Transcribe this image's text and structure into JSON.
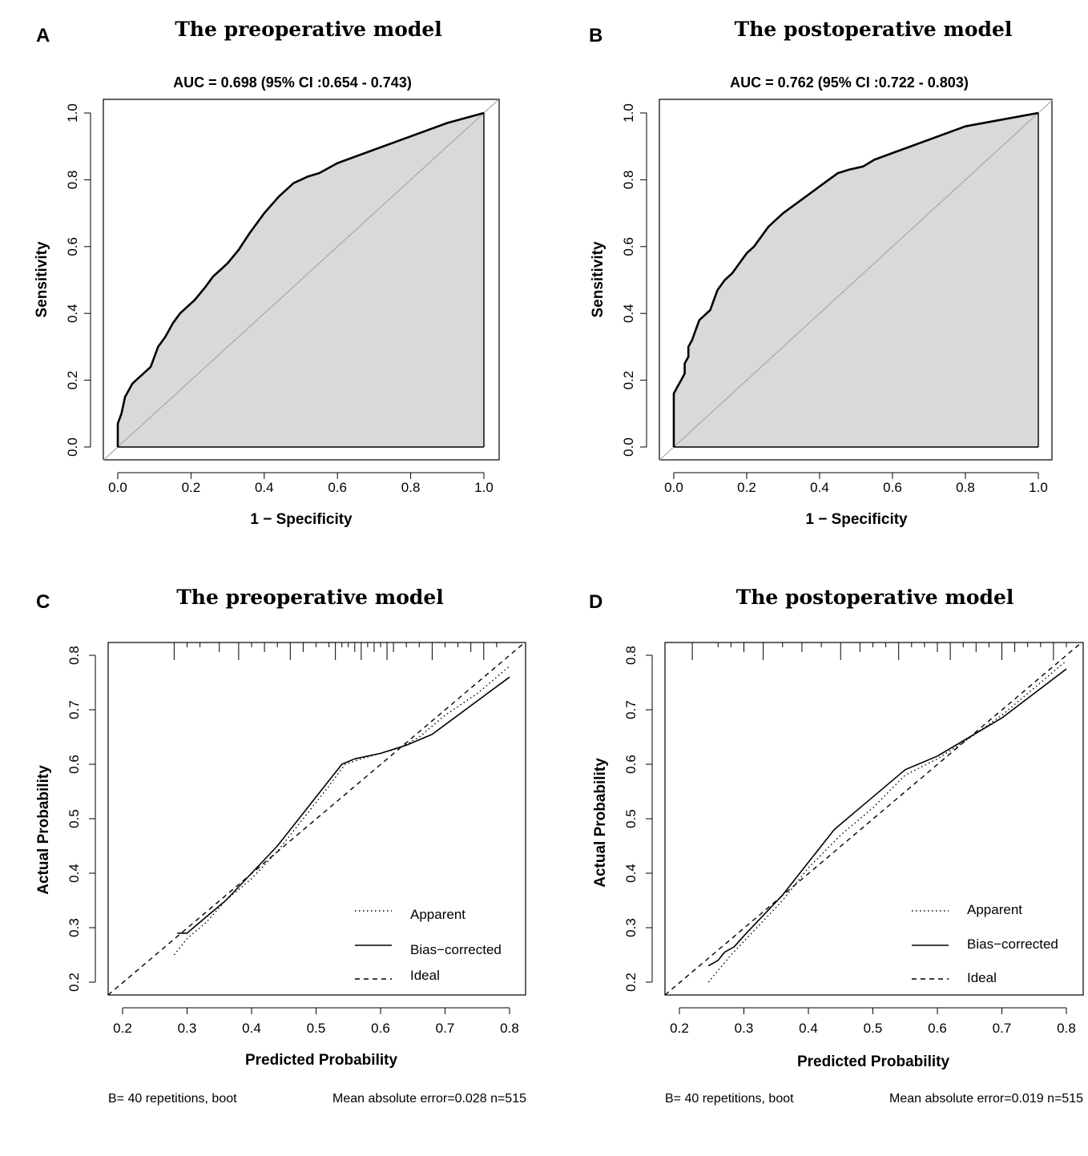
{
  "panels": {
    "A": {
      "letter": "A",
      "title": "The preoperative model",
      "subtitle": "AUC = 0.698 (95% CI :0.654 - 0.743)",
      "xlabel": "1 − Specificity",
      "ylabel": "Sensitivity"
    },
    "B": {
      "letter": "B",
      "title": "The postoperative model",
      "subtitle": "AUC = 0.762 (95% CI :0.722 - 0.803)",
      "xlabel": "1 − Specificity",
      "ylabel": "Sensitivity"
    },
    "C": {
      "letter": "C",
      "title": "The preoperative model",
      "xlabel": "Predicted Probability",
      "ylabel": "Actual Probability",
      "footer_left": "B= 40 repetitions, boot",
      "footer_right": "Mean absolute error=0.028 n=515",
      "legend": [
        "Apparent",
        "Bias−corrected",
        "Ideal"
      ]
    },
    "D": {
      "letter": "D",
      "title": "The postoperative model",
      "xlabel": "Predicted Probability",
      "ylabel": "Actual Probability",
      "footer_left": "B= 40 repetitions, boot",
      "footer_right": "Mean absolute error=0.019 n=515",
      "legend": [
        "Apparent",
        "Bias−corrected",
        "Ideal"
      ]
    }
  },
  "chart_data": [
    {
      "panel": "A",
      "type": "line",
      "title": "The preoperative model",
      "subtitle": "AUC = 0.698 (95% CI :0.654 - 0.743)",
      "xlabel": "1 − Specificity",
      "ylabel": "Sensitivity",
      "xlim": [
        0,
        1
      ],
      "ylim": [
        0,
        1
      ],
      "xticks": [
        "0.0",
        "0.2",
        "0.4",
        "0.6",
        "0.8",
        "1.0"
      ],
      "yticks": [
        "0.0",
        "0.2",
        "0.4",
        "0.6",
        "0.8",
        "1.0"
      ],
      "auc": 0.698,
      "ci": [
        0.654,
        0.743
      ],
      "series": [
        {
          "name": "ROC",
          "filled": true,
          "points": [
            [
              0,
              0
            ],
            [
              0,
              0.07
            ],
            [
              0.01,
              0.1
            ],
            [
              0.02,
              0.15
            ],
            [
              0.03,
              0.17
            ],
            [
              0.04,
              0.19
            ],
            [
              0.05,
              0.2
            ],
            [
              0.07,
              0.22
            ],
            [
              0.09,
              0.24
            ],
            [
              0.1,
              0.27
            ],
            [
              0.11,
              0.3
            ],
            [
              0.13,
              0.33
            ],
            [
              0.15,
              0.37
            ],
            [
              0.17,
              0.4
            ],
            [
              0.2,
              0.43
            ],
            [
              0.21,
              0.44
            ],
            [
              0.24,
              0.48
            ],
            [
              0.26,
              0.51
            ],
            [
              0.28,
              0.53
            ],
            [
              0.3,
              0.55
            ],
            [
              0.33,
              0.59
            ],
            [
              0.36,
              0.64
            ],
            [
              0.4,
              0.7
            ],
            [
              0.44,
              0.75
            ],
            [
              0.48,
              0.79
            ],
            [
              0.5,
              0.8
            ],
            [
              0.52,
              0.81
            ],
            [
              0.55,
              0.82
            ],
            [
              0.6,
              0.85
            ],
            [
              0.7,
              0.89
            ],
            [
              0.8,
              0.93
            ],
            [
              0.9,
              0.97
            ],
            [
              1,
              1
            ]
          ]
        },
        {
          "name": "Reference",
          "points": [
            [
              0,
              0
            ],
            [
              1,
              1
            ]
          ]
        }
      ]
    },
    {
      "panel": "B",
      "type": "line",
      "title": "The postoperative model",
      "subtitle": "AUC = 0.762 (95% CI :0.722 - 0.803)",
      "xlabel": "1 − Specificity",
      "ylabel": "Sensitivity",
      "xlim": [
        0,
        1
      ],
      "ylim": [
        0,
        1
      ],
      "xticks": [
        "0.0",
        "0.2",
        "0.4",
        "0.6",
        "0.8",
        "1.0"
      ],
      "yticks": [
        "0.0",
        "0.2",
        "0.4",
        "0.6",
        "0.8",
        "1.0"
      ],
      "auc": 0.762,
      "ci": [
        0.722,
        0.803
      ],
      "series": [
        {
          "name": "ROC",
          "filled": true,
          "points": [
            [
              0,
              0
            ],
            [
              0,
              0.16
            ],
            [
              0.01,
              0.18
            ],
            [
              0.02,
              0.2
            ],
            [
              0.03,
              0.22
            ],
            [
              0.03,
              0.25
            ],
            [
              0.04,
              0.27
            ],
            [
              0.04,
              0.3
            ],
            [
              0.05,
              0.32
            ],
            [
              0.06,
              0.35
            ],
            [
              0.07,
              0.38
            ],
            [
              0.08,
              0.39
            ],
            [
              0.1,
              0.41
            ],
            [
              0.11,
              0.44
            ],
            [
              0.12,
              0.47
            ],
            [
              0.14,
              0.5
            ],
            [
              0.16,
              0.52
            ],
            [
              0.18,
              0.55
            ],
            [
              0.2,
              0.58
            ],
            [
              0.22,
              0.6
            ],
            [
              0.24,
              0.63
            ],
            [
              0.26,
              0.66
            ],
            [
              0.3,
              0.7
            ],
            [
              0.35,
              0.74
            ],
            [
              0.4,
              0.78
            ],
            [
              0.45,
              0.82
            ],
            [
              0.48,
              0.83
            ],
            [
              0.52,
              0.84
            ],
            [
              0.55,
              0.86
            ],
            [
              0.6,
              0.88
            ],
            [
              0.7,
              0.92
            ],
            [
              0.8,
              0.96
            ],
            [
              0.9,
              0.98
            ],
            [
              1,
              1
            ]
          ]
        },
        {
          "name": "Reference",
          "points": [
            [
              0,
              0
            ],
            [
              1,
              1
            ]
          ]
        }
      ]
    },
    {
      "panel": "C",
      "type": "line",
      "title": "The preoperative model",
      "xlabel": "Predicted Probability",
      "ylabel": "Actual Probability",
      "xlim": [
        0.18,
        0.82
      ],
      "ylim": [
        0.18,
        0.82
      ],
      "xticks": [
        "0.2",
        "0.3",
        "0.4",
        "0.5",
        "0.6",
        "0.7",
        "0.8"
      ],
      "yticks": [
        "0.2",
        "0.3",
        "0.4",
        "0.5",
        "0.6",
        "0.7",
        "0.8"
      ],
      "rug": [
        0.28,
        0.3,
        0.32,
        0.35,
        0.38,
        0.4,
        0.42,
        0.44,
        0.46,
        0.48,
        0.5,
        0.52,
        0.53,
        0.54,
        0.55,
        0.56,
        0.57,
        0.58,
        0.59,
        0.6,
        0.61,
        0.62,
        0.64,
        0.66,
        0.68,
        0.7,
        0.72,
        0.74,
        0.76,
        0.78
      ],
      "series": [
        {
          "name": "Apparent",
          "style": "dotted",
          "points": [
            [
              0.28,
              0.25
            ],
            [
              0.3,
              0.28
            ],
            [
              0.33,
              0.31
            ],
            [
              0.36,
              0.35
            ],
            [
              0.4,
              0.39
            ],
            [
              0.44,
              0.44
            ],
            [
              0.48,
              0.5
            ],
            [
              0.52,
              0.56
            ],
            [
              0.545,
              0.6
            ],
            [
              0.57,
              0.61
            ],
            [
              0.6,
              0.62
            ],
            [
              0.63,
              0.63
            ],
            [
              0.66,
              0.65
            ],
            [
              0.7,
              0.69
            ],
            [
              0.75,
              0.73
            ],
            [
              0.8,
              0.78
            ]
          ]
        },
        {
          "name": "Bias−corrected",
          "style": "solid",
          "points": [
            [
              0.285,
              0.29
            ],
            [
              0.3,
              0.29
            ],
            [
              0.31,
              0.3
            ],
            [
              0.33,
              0.32
            ],
            [
              0.36,
              0.35
            ],
            [
              0.4,
              0.4
            ],
            [
              0.44,
              0.45
            ],
            [
              0.48,
              0.51
            ],
            [
              0.52,
              0.57
            ],
            [
              0.54,
              0.6
            ],
            [
              0.56,
              0.61
            ],
            [
              0.6,
              0.62
            ],
            [
              0.64,
              0.635
            ],
            [
              0.68,
              0.655
            ],
            [
              0.72,
              0.69
            ],
            [
              0.76,
              0.725
            ],
            [
              0.8,
              0.76
            ]
          ]
        },
        {
          "name": "Ideal",
          "style": "dashed",
          "points": [
            [
              0.18,
              0.18
            ],
            [
              0.82,
              0.82
            ]
          ]
        }
      ]
    },
    {
      "panel": "D",
      "type": "line",
      "title": "The postoperative model",
      "xlabel": "Predicted Probability",
      "ylabel": "Actual Probability",
      "xlim": [
        0.18,
        0.82
      ],
      "ylim": [
        0.18,
        0.82
      ],
      "xticks": [
        "0.2",
        "0.3",
        "0.4",
        "0.5",
        "0.6",
        "0.7",
        "0.8"
      ],
      "yticks": [
        "0.2",
        "0.3",
        "0.4",
        "0.5",
        "0.6",
        "0.7",
        "0.8"
      ],
      "rug": [
        0.22,
        0.26,
        0.28,
        0.3,
        0.33,
        0.36,
        0.39,
        0.42,
        0.45,
        0.48,
        0.5,
        0.52,
        0.54,
        0.56,
        0.58,
        0.6,
        0.62,
        0.64,
        0.66,
        0.68,
        0.7,
        0.72,
        0.74,
        0.76,
        0.78,
        0.8
      ],
      "series": [
        {
          "name": "Apparent",
          "style": "dotted",
          "points": [
            [
              0.245,
              0.2
            ],
            [
              0.28,
              0.25
            ],
            [
              0.32,
              0.3
            ],
            [
              0.36,
              0.35
            ],
            [
              0.4,
              0.41
            ],
            [
              0.45,
              0.47
            ],
            [
              0.5,
              0.52
            ],
            [
              0.55,
              0.58
            ],
            [
              0.6,
              0.61
            ],
            [
              0.64,
              0.64
            ],
            [
              0.7,
              0.69
            ],
            [
              0.75,
              0.74
            ],
            [
              0.8,
              0.79
            ]
          ]
        },
        {
          "name": "Bias−corrected",
          "style": "solid",
          "points": [
            [
              0.245,
              0.23
            ],
            [
              0.26,
              0.24
            ],
            [
              0.27,
              0.255
            ],
            [
              0.285,
              0.265
            ],
            [
              0.3,
              0.285
            ],
            [
              0.32,
              0.31
            ],
            [
              0.36,
              0.36
            ],
            [
              0.4,
              0.42
            ],
            [
              0.44,
              0.48
            ],
            [
              0.47,
              0.51
            ],
            [
              0.5,
              0.54
            ],
            [
              0.55,
              0.59
            ],
            [
              0.6,
              0.615
            ],
            [
              0.65,
              0.65
            ],
            [
              0.7,
              0.685
            ],
            [
              0.75,
              0.73
            ],
            [
              0.8,
              0.775
            ]
          ]
        },
        {
          "name": "Ideal",
          "style": "dashed",
          "points": [
            [
              0.18,
              0.18
            ],
            [
              0.82,
              0.82
            ]
          ]
        }
      ]
    }
  ]
}
